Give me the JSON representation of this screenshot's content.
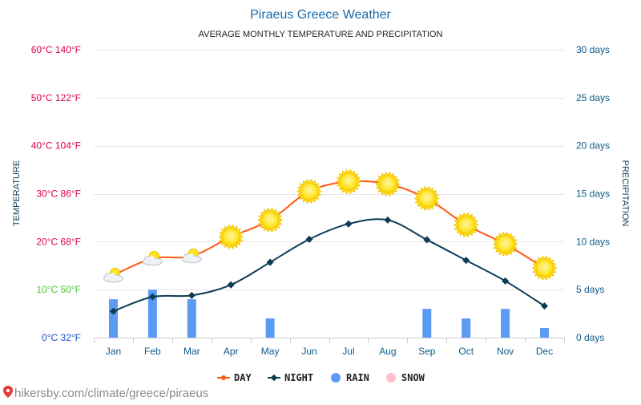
{
  "title": "Piraeus Greece Weather",
  "subtitle": "AVERAGE MONTHLY TEMPERATURE AND PRECIPITATION",
  "footer": "hikersby.com/climate/greece/piraeus",
  "colors": {
    "title": "#1a69a8",
    "day": "#ff5a10",
    "night": "#0d3c54",
    "rain": "#5b9bf5",
    "snow": "#ffc0cb",
    "grid": "#e6e6e6",
    "axis_right": "#0e5a8a",
    "temp_hot": "#e0004d",
    "temp_mild": "#49c42b",
    "temp_cold": "#1a4fc7",
    "sun": "#ffe426",
    "sun_stroke": "#f2c200"
  },
  "chart_data": {
    "type": "line",
    "categories": [
      "Jan",
      "Feb",
      "Mar",
      "Apr",
      "May",
      "Jun",
      "Jul",
      "Aug",
      "Sep",
      "Oct",
      "Nov",
      "Dec"
    ],
    "series": [
      {
        "name": "DAY",
        "axis": "temperature",
        "values": [
          13,
          16.5,
          17,
          21,
          24.5,
          30.5,
          32.5,
          32,
          29,
          23.5,
          19.5,
          14.5
        ],
        "icons": [
          "partly-cloudy",
          "partly-cloudy",
          "partly-cloudy",
          "sunny",
          "sunny",
          "sunny",
          "sunny",
          "sunny",
          "sunny",
          "sunny",
          "sunny",
          "sunny"
        ]
      },
      {
        "name": "NIGHT",
        "axis": "temperature",
        "values": [
          5.5,
          8.5,
          8.8,
          11,
          15.7,
          20.5,
          23.7,
          24.5,
          20.4,
          16.1,
          11.8,
          6.6
        ]
      },
      {
        "name": "RAIN",
        "axis": "precipitation",
        "values": [
          4,
          5,
          4,
          0,
          2,
          0,
          0,
          0,
          3,
          2,
          3,
          1
        ]
      },
      {
        "name": "SNOW",
        "axis": "precipitation",
        "values": [
          0,
          0,
          0,
          0,
          0,
          0,
          0,
          0,
          0,
          0,
          0,
          0
        ]
      }
    ],
    "ylabel": "TEMPERATURE",
    "y2label": "PRECIPITATION",
    "ylim": [
      0,
      60
    ],
    "y2lim": [
      0,
      30
    ],
    "y_ticks": [
      {
        "value": 0,
        "label": "0°C 32°F",
        "tone": "cold"
      },
      {
        "value": 10,
        "label": "10°C 50°F",
        "tone": "mild"
      },
      {
        "value": 20,
        "label": "20°C 68°F",
        "tone": "hot"
      },
      {
        "value": 30,
        "label": "30°C 86°F",
        "tone": "hot"
      },
      {
        "value": 40,
        "label": "40°C 104°F",
        "tone": "hot"
      },
      {
        "value": 50,
        "label": "50°C 122°F",
        "tone": "hot"
      },
      {
        "value": 60,
        "label": "60°C 140°F",
        "tone": "hot"
      }
    ],
    "y2_ticks": [
      {
        "value": 0,
        "label": "0 days"
      },
      {
        "value": 5,
        "label": "5 days"
      },
      {
        "value": 10,
        "label": "10 days"
      },
      {
        "value": 15,
        "label": "15 days"
      },
      {
        "value": 20,
        "label": "20 days"
      },
      {
        "value": 25,
        "label": "25 days"
      },
      {
        "value": 30,
        "label": "30 days"
      }
    ],
    "grid": true,
    "legend_position": "bottom-center"
  }
}
